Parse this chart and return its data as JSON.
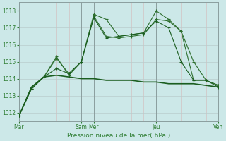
{
  "xlabel": "Pression niveau de la mer( hPa )",
  "background_color": "#cce8e8",
  "grid_major_color": "#b0cccc",
  "grid_minor_color": "#c8dede",
  "line_color_dark": "#1a5e20",
  "line_color_light": "#2e7d32",
  "ylim": [
    1011.5,
    1018.5
  ],
  "yticks": [
    1012,
    1013,
    1014,
    1015,
    1016,
    1017,
    1018
  ],
  "xlim": [
    0,
    16
  ],
  "major_xtick_pos": [
    0,
    5,
    6,
    11,
    16
  ],
  "major_xtick_labels": [
    "Mar",
    "Sam",
    "Mer",
    "Jeu",
    "Ven"
  ],
  "vline_positions": [
    0,
    5,
    6,
    11,
    16
  ],
  "series": [
    {
      "x": [
        0,
        1,
        2,
        3,
        4,
        5,
        6,
        7,
        8,
        9,
        10,
        11,
        12,
        13,
        14,
        15,
        16
      ],
      "y": [
        1011.8,
        1013.5,
        1014.1,
        1015.3,
        1014.2,
        1015.0,
        1017.8,
        1017.5,
        1016.5,
        1016.6,
        1016.7,
        1018.0,
        1017.5,
        1016.8,
        1015.0,
        1013.9,
        1013.6
      ],
      "marker": "+",
      "linewidth": 0.8,
      "markersize": 3.5,
      "color": "#2d6e2d"
    },
    {
      "x": [
        0,
        1,
        2,
        3,
        4,
        5,
        6,
        7,
        8,
        9,
        10,
        11,
        12,
        13,
        14,
        15,
        16
      ],
      "y": [
        1011.8,
        1013.4,
        1014.1,
        1015.2,
        1014.3,
        1015.0,
        1017.7,
        1016.5,
        1016.4,
        1016.5,
        1016.6,
        1017.5,
        1017.4,
        1016.8,
        1013.9,
        1013.9,
        1013.6
      ],
      "marker": "+",
      "linewidth": 0.8,
      "markersize": 3.5,
      "color": "#2d6e2d"
    },
    {
      "x": [
        0,
        1,
        2,
        3,
        4,
        5,
        6,
        7,
        8,
        9,
        10,
        11,
        12,
        13,
        14,
        15,
        16
      ],
      "y": [
        1011.8,
        1013.4,
        1014.1,
        1014.6,
        1014.3,
        1015.0,
        1017.6,
        1016.4,
        1016.5,
        1016.6,
        1016.7,
        1017.4,
        1017.0,
        1015.0,
        1013.9,
        1013.9,
        1013.5
      ],
      "marker": "+",
      "linewidth": 0.8,
      "markersize": 3.5,
      "color": "#1b5e20"
    },
    {
      "x": [
        0,
        1,
        2,
        3,
        4,
        5,
        6,
        7,
        8,
        9,
        10,
        11,
        12,
        13,
        14,
        15,
        16
      ],
      "y": [
        1011.8,
        1013.5,
        1014.1,
        1014.2,
        1014.1,
        1014.0,
        1014.0,
        1013.9,
        1013.9,
        1013.9,
        1013.8,
        1013.8,
        1013.7,
        1013.7,
        1013.7,
        1013.6,
        1013.5
      ],
      "marker": null,
      "linewidth": 1.2,
      "markersize": 0,
      "color": "#1b5e20"
    }
  ]
}
